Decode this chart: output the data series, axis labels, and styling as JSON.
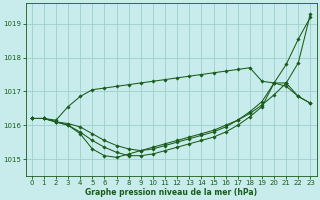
{
  "xlabel": "Graphe pression niveau de la mer (hPa)",
  "xlim": [
    -0.5,
    23.5
  ],
  "ylim": [
    1014.5,
    1019.6
  ],
  "yticks": [
    1015,
    1016,
    1017,
    1018,
    1019
  ],
  "xticks": [
    0,
    1,
    2,
    3,
    4,
    5,
    6,
    7,
    8,
    9,
    10,
    11,
    12,
    13,
    14,
    15,
    16,
    17,
    18,
    19,
    20,
    21,
    22,
    23
  ],
  "bg_color": "#c8ecec",
  "grid_color": "#9ecfcf",
  "line_color": "#1a5c1a",
  "series": [
    [
      1016.2,
      1016.2,
      1016.1,
      1016.05,
      1015.95,
      1015.75,
      1015.55,
      1015.4,
      1015.3,
      1015.25,
      1015.3,
      1015.4,
      1015.5,
      1015.6,
      1015.7,
      1015.8,
      1015.95,
      1016.15,
      1016.4,
      1016.7,
      1017.25,
      1017.25,
      1016.85,
      1016.65
    ],
    [
      1016.2,
      1016.2,
      1016.1,
      1016.0,
      1015.8,
      1015.55,
      1015.35,
      1015.2,
      1015.1,
      1015.1,
      1015.15,
      1015.25,
      1015.35,
      1015.45,
      1015.55,
      1015.65,
      1015.8,
      1016.0,
      1016.25,
      1016.55,
      1017.25,
      1017.8,
      1018.55,
      1019.2
    ],
    [
      1016.2,
      1016.2,
      1016.15,
      1016.55,
      1016.85,
      1017.05,
      1017.1,
      1017.15,
      1017.2,
      1017.25,
      1017.3,
      1017.35,
      1017.4,
      1017.45,
      1017.5,
      1017.55,
      1017.6,
      1017.65,
      1017.7,
      1017.3,
      1017.25,
      1017.15,
      1016.85,
      1016.65
    ],
    [
      1016.2,
      1016.2,
      1016.1,
      1016.0,
      1015.75,
      1015.3,
      1015.1,
      1015.05,
      1015.15,
      1015.25,
      1015.35,
      1015.45,
      1015.55,
      1015.65,
      1015.75,
      1015.85,
      1016.0,
      1016.15,
      1016.35,
      1016.6,
      1016.9,
      1017.25,
      1017.85,
      1019.3
    ]
  ]
}
